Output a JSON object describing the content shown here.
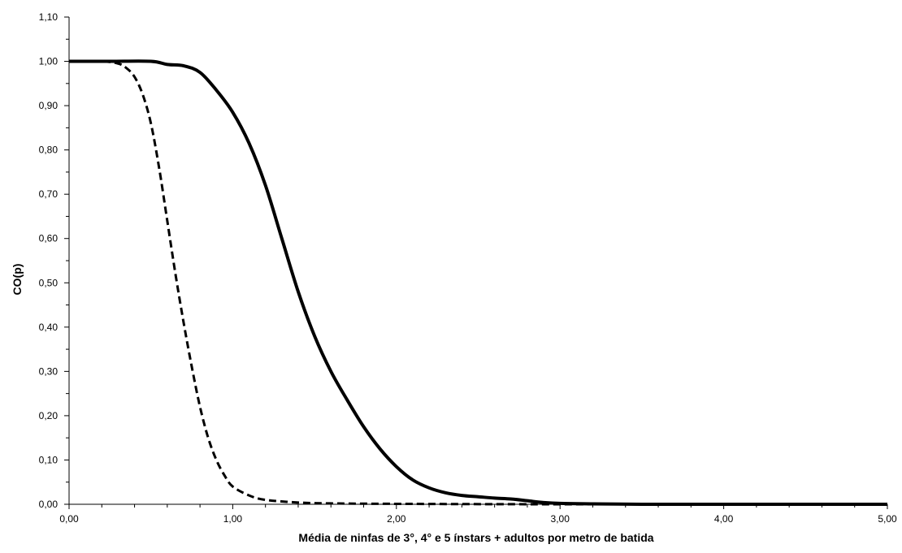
{
  "chart_data": {
    "type": "line",
    "title": "",
    "xlabel": "Média de ninfas de 3°, 4° e 5 ínstars + adultos por metro de batida",
    "ylabel": "CO(p)",
    "xlim": [
      0,
      5
    ],
    "ylim": [
      0,
      1.1
    ],
    "x_ticks": [
      "0,00",
      "1,00",
      "2,00",
      "3,00",
      "4,00",
      "5,00"
    ],
    "y_ticks": [
      "0,00",
      "0,10",
      "0,20",
      "0,30",
      "0,40",
      "0,50",
      "0,60",
      "0,70",
      "0,80",
      "0,90",
      "1,00",
      "1,10"
    ],
    "x_minor_step": 0.2,
    "y_minor_step": 0.05,
    "grid": false,
    "legend": "none",
    "series": [
      {
        "style": "solid",
        "color": "#000000",
        "points": [
          [
            0.0,
            1.0
          ],
          [
            0.25,
            1.0
          ],
          [
            0.5,
            1.0
          ],
          [
            0.6,
            0.993
          ],
          [
            0.7,
            0.99
          ],
          [
            0.8,
            0.975
          ],
          [
            0.9,
            0.935
          ],
          [
            1.0,
            0.885
          ],
          [
            1.1,
            0.815
          ],
          [
            1.2,
            0.72
          ],
          [
            1.3,
            0.6
          ],
          [
            1.4,
            0.48
          ],
          [
            1.5,
            0.38
          ],
          [
            1.6,
            0.3
          ],
          [
            1.7,
            0.235
          ],
          [
            1.8,
            0.175
          ],
          [
            1.9,
            0.125
          ],
          [
            2.0,
            0.085
          ],
          [
            2.1,
            0.055
          ],
          [
            2.2,
            0.037
          ],
          [
            2.3,
            0.026
          ],
          [
            2.4,
            0.02
          ],
          [
            2.5,
            0.017
          ],
          [
            2.6,
            0.014
          ],
          [
            2.7,
            0.012
          ],
          [
            2.8,
            0.008
          ],
          [
            2.9,
            0.004
          ],
          [
            3.0,
            0.002
          ],
          [
            3.2,
            0.001
          ],
          [
            3.5,
            0.0
          ],
          [
            4.0,
            0.0
          ],
          [
            5.0,
            0.0
          ]
        ]
      },
      {
        "style": "dashed",
        "color": "#000000",
        "points": [
          [
            0.0,
            1.0
          ],
          [
            0.2,
            1.0
          ],
          [
            0.3,
            0.995
          ],
          [
            0.35,
            0.985
          ],
          [
            0.4,
            0.965
          ],
          [
            0.45,
            0.925
          ],
          [
            0.5,
            0.86
          ],
          [
            0.55,
            0.76
          ],
          [
            0.6,
            0.64
          ],
          [
            0.65,
            0.52
          ],
          [
            0.7,
            0.41
          ],
          [
            0.75,
            0.31
          ],
          [
            0.8,
            0.22
          ],
          [
            0.85,
            0.15
          ],
          [
            0.9,
            0.1
          ],
          [
            0.95,
            0.065
          ],
          [
            1.0,
            0.04
          ],
          [
            1.1,
            0.02
          ],
          [
            1.2,
            0.01
          ],
          [
            1.4,
            0.004
          ],
          [
            1.6,
            0.002
          ],
          [
            2.0,
            0.001
          ],
          [
            3.0,
            0.0
          ],
          [
            5.0,
            0.0
          ]
        ]
      }
    ]
  }
}
